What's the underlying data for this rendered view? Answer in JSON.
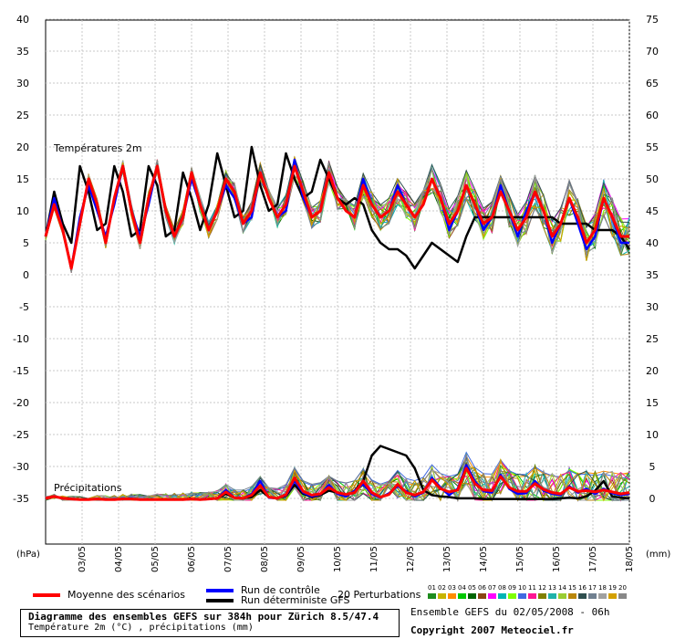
{
  "chart_data": {
    "type": "line",
    "title": "Diagramme des ensembles GEFS sur 384h pour Zürich 8.5/47.4",
    "subtitle": "Température 2m (°C) , précipitations (mm)",
    "sections": {
      "temperature": "Températures 2m",
      "precipitation": "Précipitations"
    },
    "left_axis": {
      "unit": "(hPa)",
      "ticks": [
        40,
        35,
        30,
        25,
        20,
        15,
        10,
        5,
        0,
        -5,
        -10,
        -15,
        -20,
        -25,
        -30,
        -35
      ],
      "range": [
        -35,
        40
      ]
    },
    "right_axis": {
      "unit": "(mm)",
      "ticks": [
        75,
        70,
        65,
        60,
        55,
        50,
        45,
        40,
        35,
        30,
        25,
        20,
        15,
        10,
        5,
        0
      ]
    },
    "x_labels": [
      "03/05",
      "04/05",
      "05/05",
      "06/05",
      "07/05",
      "08/05",
      "09/05",
      "10/05",
      "11/05",
      "12/05",
      "13/05",
      "14/05",
      "15/05",
      "16/05",
      "17/05",
      "18/05"
    ],
    "grid": true,
    "series": [
      {
        "name": "Moyenne des scénarios",
        "color": "#ff0000",
        "temperature": [
          6,
          11,
          7,
          1,
          8,
          15,
          11,
          5,
          12,
          17,
          10,
          5,
          12,
          17,
          10,
          6,
          9,
          16,
          11,
          7,
          10,
          15,
          13,
          8,
          10,
          16,
          12,
          9,
          11,
          17,
          13,
          9,
          10,
          16,
          12,
          10,
          9,
          14,
          11,
          9,
          10,
          13,
          11,
          9,
          11,
          15,
          12,
          8,
          10,
          14,
          11,
          8,
          9,
          13,
          10,
          7,
          9,
          13,
          10,
          6,
          8,
          12,
          9,
          5,
          7,
          12,
          9,
          6,
          6
        ],
        "precipitation": [
          0.3,
          0.6,
          0.3,
          0.2,
          0.1,
          0.1,
          0.2,
          0.1,
          0.1,
          0.2,
          0.2,
          0.1,
          0.1,
          0.1,
          0.1,
          0.1,
          0.1,
          0.2,
          0.1,
          0.2,
          0.3,
          1.3,
          0.4,
          0.3,
          0.8,
          2.3,
          0.5,
          0.3,
          0.9,
          3.5,
          1.4,
          0.8,
          1.0,
          2.0,
          1.2,
          0.9,
          1.2,
          3.0,
          1.2,
          0.5,
          0.9,
          2.5,
          1.2,
          0.8,
          1.3,
          3.2,
          1.8,
          1.3,
          1.6,
          5.0,
          2.6,
          1.6,
          1.5,
          3.7,
          2.0,
          1.4,
          1.4,
          2.6,
          1.7,
          1.2,
          1.0,
          2.0,
          1.4,
          1.5,
          1.3,
          1.6,
          1.3,
          1.0,
          1.2
        ]
      },
      {
        "name": "Run de contrôle",
        "color": "#0000ff",
        "temperature": [
          6,
          12,
          7,
          1,
          9,
          14,
          10,
          6,
          11,
          17,
          10,
          6,
          11,
          17,
          10,
          6,
          9,
          15,
          11,
          7,
          10,
          14,
          12,
          8,
          9,
          16,
          12,
          9,
          10,
          18,
          12,
          9,
          10,
          16,
          12,
          10,
          9,
          15,
          11,
          9,
          10,
          14,
          11,
          9,
          11,
          15,
          12,
          7,
          10,
          14,
          11,
          7,
          9,
          14,
          10,
          6,
          10,
          13,
          10,
          5,
          8,
          12,
          8,
          4,
          6,
          12,
          9,
          5,
          5
        ],
        "precipitation": [
          0.3,
          0.6,
          0.3,
          0.2,
          0.1,
          0.1,
          0.2,
          0.1,
          0.1,
          0.2,
          0.2,
          0.1,
          0.1,
          0.1,
          0.1,
          0.1,
          0.1,
          0.2,
          0.1,
          0.2,
          0.3,
          1.6,
          0.4,
          0.3,
          1.0,
          3.0,
          0.4,
          0.3,
          0.8,
          3.0,
          1.2,
          0.6,
          0.9,
          2.4,
          1.0,
          0.6,
          1.5,
          2.5,
          1.0,
          0.4,
          1.1,
          2.2,
          1.4,
          0.6,
          1.2,
          3.5,
          2.0,
          0.8,
          1.8,
          5.5,
          3.0,
          1.4,
          1.2,
          4.0,
          1.8,
          1.0,
          1.1,
          3.0,
          1.5,
          1.0,
          0.8,
          2.2,
          1.2,
          1.8,
          1.0,
          1.8,
          1.1,
          0.8,
          1.0
        ]
      },
      {
        "name": "Run déterministe GFS",
        "color": "#000000",
        "temperature": [
          6,
          13,
          8,
          5,
          17,
          13,
          7,
          8,
          17,
          13,
          6,
          7,
          17,
          14,
          6,
          7,
          16,
          12,
          7,
          11,
          19,
          14,
          9,
          10,
          20,
          14,
          10,
          11,
          19,
          15,
          12,
          13,
          18,
          15,
          12,
          11,
          12,
          11,
          7,
          5,
          4,
          4,
          3,
          1,
          3,
          5,
          4,
          3,
          2,
          6,
          9,
          9,
          9,
          9,
          9,
          9,
          9,
          9,
          9,
          9,
          8,
          8,
          8,
          8,
          7,
          7,
          7,
          6,
          4
        ],
        "precipitation": [
          0.3,
          0.6,
          0.3,
          0.2,
          0.1,
          0.1,
          0.2,
          0.1,
          0.1,
          0.2,
          0.2,
          0.1,
          0.1,
          0.1,
          0.1,
          0.1,
          0.1,
          0.2,
          0.1,
          0.2,
          0.3,
          1.0,
          0.4,
          0.3,
          0.5,
          1.6,
          0.5,
          0.3,
          0.7,
          2.4,
          1.0,
          0.5,
          0.8,
          1.5,
          1.2,
          0.6,
          1.5,
          3.0,
          7.0,
          8.5,
          8.0,
          7.5,
          7.0,
          5.0,
          1.6,
          0.8,
          0.6,
          0.5,
          0.3,
          0.3,
          0.3,
          0.2,
          0.2,
          0.2,
          0.2,
          0.2,
          0.2,
          0.2,
          0.2,
          0.2,
          0.3,
          0.4,
          0.3,
          0.6,
          1.5,
          3.0,
          0.6,
          0.4,
          0.3
        ]
      }
    ],
    "perturbations": {
      "label": "20 Perturbations",
      "ids": [
        "01",
        "02",
        "03",
        "04",
        "05",
        "06",
        "07",
        "08",
        "09",
        "10",
        "11",
        "12",
        "13",
        "14",
        "15",
        "16",
        "17",
        "18",
        "19",
        "20"
      ],
      "colors": [
        "#1e8c1e",
        "#c8b400",
        "#ff8c00",
        "#00c800",
        "#006400",
        "#8b4513",
        "#ff00ff",
        "#00b4b4",
        "#7fff00",
        "#4169e1",
        "#ff1493",
        "#808000",
        "#20b2aa",
        "#9acd32",
        "#b8860b",
        "#2f4f4f",
        "#708090",
        "#a0a0a0",
        "#d3a000",
        "#888888"
      ]
    }
  },
  "legend": {
    "mean": "Moyenne des scénarios",
    "control": "Run de contrôle",
    "deterministic": "Run déterministe GFS",
    "perturbations": "20 Perturbations"
  },
  "footer": {
    "run_info": "Ensemble GEFS du 02/05/2008 - 06h",
    "copyright": "Copyright 2007 Meteociel.fr"
  }
}
